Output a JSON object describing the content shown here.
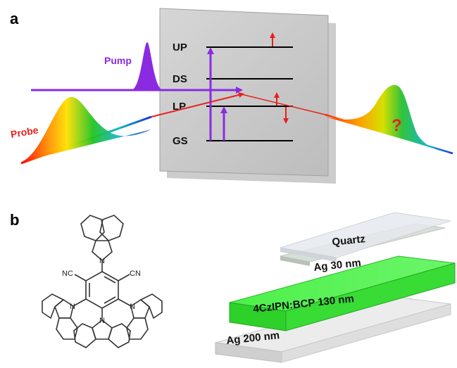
{
  "panel_a": {
    "label": "a",
    "levels": [
      {
        "name": "UP"
      },
      {
        "name": "DS"
      },
      {
        "name": "LP"
      },
      {
        "name": "GS"
      }
    ],
    "pump_label": "Pump",
    "probe_label": "Probe",
    "question_mark": "?",
    "colors": {
      "pump": "#8a2be2",
      "probe": "#e8201e",
      "screen_fill": "#c9c9c9",
      "transition_arrow": "#8a2be2",
      "shift_arrow": "#e8201e"
    }
  },
  "panel_b": {
    "label": "b",
    "molecule": {
      "cn_left": "NC",
      "cn_right": "CN",
      "nitrogen": "N"
    },
    "layers": [
      {
        "name": "Quartz",
        "color": "#e4e7ec"
      },
      {
        "name": "Ag 30 nm",
        "color": "#d2d8d2"
      },
      {
        "name": "4CzIPN:BCP 130 nm",
        "color": "#3fe03a"
      },
      {
        "name": "Ag 200 nm",
        "color": "#d8d8d8"
      }
    ]
  }
}
